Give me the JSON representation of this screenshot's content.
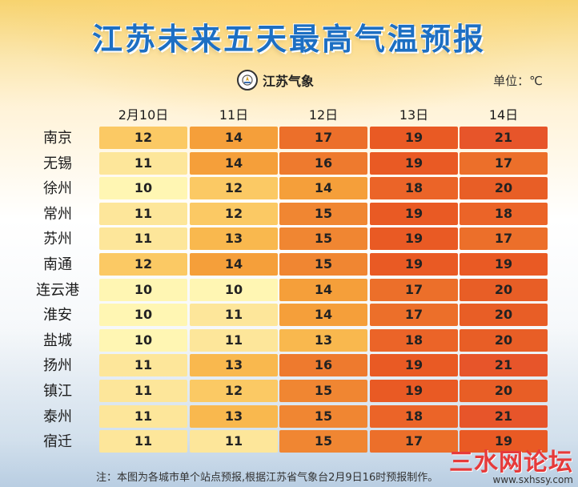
{
  "title": "江苏未来五天最高气温预报",
  "logo": {
    "text": "江苏气象",
    "icon": "weather-bureau-emblem-icon"
  },
  "unit": "单位：℃",
  "dates": [
    "2月10日",
    "11日",
    "12日",
    "13日",
    "14日"
  ],
  "rows": [
    {
      "city": "南京",
      "temps": [
        "12",
        "14",
        "17",
        "19",
        "21"
      ]
    },
    {
      "city": "无锡",
      "temps": [
        "11",
        "14",
        "16",
        "19",
        "17"
      ]
    },
    {
      "city": "徐州",
      "temps": [
        "10",
        "12",
        "14",
        "18",
        "20"
      ]
    },
    {
      "city": "常州",
      "temps": [
        "11",
        "12",
        "15",
        "19",
        "18"
      ]
    },
    {
      "city": "苏州",
      "temps": [
        "11",
        "13",
        "15",
        "19",
        "17"
      ]
    },
    {
      "city": "南通",
      "temps": [
        "12",
        "14",
        "15",
        "19",
        "19"
      ]
    },
    {
      "city": "连云港",
      "temps": [
        "10",
        "10",
        "14",
        "17",
        "20"
      ]
    },
    {
      "city": "淮安",
      "temps": [
        "10",
        "11",
        "14",
        "17",
        "20"
      ]
    },
    {
      "city": "盐城",
      "temps": [
        "10",
        "11",
        "13",
        "18",
        "20"
      ]
    },
    {
      "city": "扬州",
      "temps": [
        "11",
        "13",
        "16",
        "19",
        "21"
      ]
    },
    {
      "city": "镇江",
      "temps": [
        "11",
        "12",
        "15",
        "19",
        "20"
      ]
    },
    {
      "city": "泰州",
      "temps": [
        "11",
        "13",
        "15",
        "18",
        "21"
      ]
    },
    {
      "city": "宿迁",
      "temps": [
        "11",
        "11",
        "15",
        "17",
        "19"
      ]
    }
  ],
  "note": "注：本图为各城市单个站点预报,根据江苏省气象台2月9日16时预报制作。",
  "watermark": {
    "main": "三水网论坛",
    "sub": "www.sxhssy.com"
  },
  "colors": {
    "10": "#fff6b3",
    "11": "#fde69a",
    "12": "#fbc964",
    "13": "#f9b84e",
    "14": "#f59f3a",
    "15": "#f08632",
    "16": "#ee7a2e",
    "17": "#ec6f2a",
    "18": "#eb6428",
    "19": "#e95a24",
    "20": "#e85e26",
    "21": "#e7552a",
    "title": "#1d6fc3"
  }
}
